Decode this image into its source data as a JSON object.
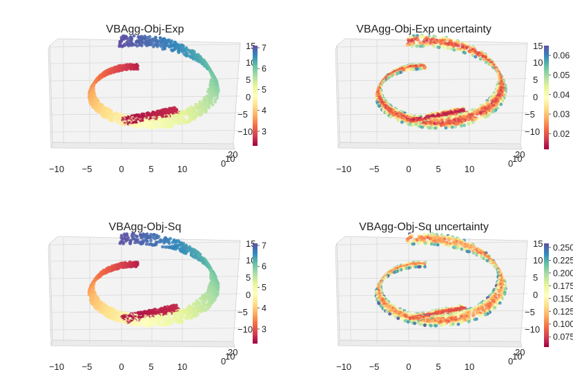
{
  "colors": {
    "colormap": "Spectral",
    "spectral_stops": [
      "#9e0142",
      "#d53e4f",
      "#f46d43",
      "#fdae61",
      "#fee08b",
      "#ffffbf",
      "#e6f598",
      "#abdda4",
      "#66c2a5",
      "#3288bd",
      "#5e4fa2"
    ]
  },
  "chart_data": [
    {
      "type": "scatter3d",
      "title": "VBAgg-Obj-Exp",
      "colorbar": {
        "ticks": [
          "3",
          "4",
          "5",
          "6",
          "7"
        ],
        "range": [
          2.3,
          7.1
        ]
      },
      "x_ticks": [
        "−10",
        "−5",
        "0",
        "5",
        "10"
      ],
      "y_ticks": [
        "0",
        "10",
        "20"
      ],
      "z_ticks": [
        "15",
        "10",
        "5",
        "0",
        "−5",
        "−10"
      ],
      "xlim": [
        -10,
        13
      ],
      "ylim": [
        0,
        20
      ],
      "zlim": [
        -13,
        15
      ],
      "color_encoding": "arc position along spiral"
    },
    {
      "type": "scatter3d",
      "title": "VBAgg-Obj-Exp uncertainty",
      "colorbar": {
        "ticks": [
          "0.02",
          "0.03",
          "0.04",
          "0.05",
          "0.06"
        ],
        "range": [
          0.012,
          0.065
        ]
      },
      "x_ticks": [
        "−10",
        "−5",
        "0",
        "5",
        "10"
      ],
      "y_ticks": [
        "0",
        "10",
        "20"
      ],
      "z_ticks": [
        "15",
        "10",
        "5",
        "0",
        "−5",
        "−10"
      ],
      "xlim": [
        -10,
        13
      ],
      "ylim": [
        0,
        20
      ],
      "zlim": [
        -13,
        15
      ],
      "color_encoding": "low uncertainty in core, higher at edges"
    },
    {
      "type": "scatter3d",
      "title": "VBAgg-Obj-Sq",
      "colorbar": {
        "ticks": [
          "3",
          "4",
          "5",
          "6",
          "7"
        ],
        "range": [
          2.3,
          7.1
        ]
      },
      "x_ticks": [
        "−10",
        "−5",
        "0",
        "5",
        "10"
      ],
      "y_ticks": [
        "0",
        "10",
        "20"
      ],
      "z_ticks": [
        "15",
        "10",
        "5",
        "0",
        "−5",
        "−10"
      ],
      "xlim": [
        -10,
        13
      ],
      "ylim": [
        0,
        20
      ],
      "zlim": [
        -13,
        15
      ],
      "color_encoding": "arc position along spiral"
    },
    {
      "type": "scatter3d",
      "title": "VBAgg-Obj-Sq uncertainty",
      "colorbar": {
        "ticks": [
          "0.250",
          "0.225",
          "0.200",
          "0.175",
          "0.150",
          "0.125",
          "0.100",
          "0.075"
        ],
        "range": [
          0.055,
          0.258
        ]
      },
      "x_ticks": [
        "−10",
        "−5",
        "0",
        "5",
        "10"
      ],
      "y_ticks": [
        "0",
        "10",
        "20"
      ],
      "z_ticks": [
        "15",
        "10",
        "5",
        "0",
        "−5",
        "−10"
      ],
      "xlim": [
        -10,
        13
      ],
      "ylim": [
        0,
        20
      ],
      "zlim": [
        -13,
        15
      ],
      "color_encoding": "low uncertainty in core, higher at edges"
    }
  ]
}
